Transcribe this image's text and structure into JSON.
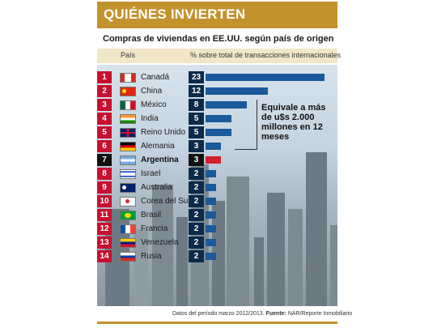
{
  "header": {
    "title": "QUIÉNES INVIERTEN"
  },
  "subtitle": "Compras de viviendas en EE.UU. según país de origen",
  "columns": {
    "country": "País",
    "value": "% sobre total de transacciones internacionales"
  },
  "callout": "Equivale a más de u$s 2.000 millones en 12 meses",
  "footer": {
    "prefix": "Datos del período marzo 2012/2013.",
    "source_label": "Fuente:",
    "source": "NAR/Reporte Inmobiliario"
  },
  "colors": {
    "rank_red": "#c8102e",
    "rank_black": "#111111",
    "value_navy": "#0d2a4a",
    "bar_blue": "#1a5a9a",
    "highlight_red": "#d4202c",
    "header_gold": "#c2922c"
  },
  "chart_data": {
    "type": "bar",
    "orientation": "horizontal",
    "title": "Compras de viviendas en EE.UU. según país de origen",
    "xlabel": "% sobre total de transacciones internacionales",
    "ylabel": "País",
    "xlim": [
      0,
      23
    ],
    "highlight": "Argentina",
    "rows": [
      {
        "rank": "1",
        "country": "Canadá",
        "value": 23,
        "flag": "canada"
      },
      {
        "rank": "2",
        "country": "China",
        "value": 12,
        "flag": "china"
      },
      {
        "rank": "3",
        "country": "México",
        "value": 8,
        "flag": "mexico"
      },
      {
        "rank": "4",
        "country": "India",
        "value": 5,
        "flag": "india"
      },
      {
        "rank": "5",
        "country": "Reino Unido",
        "value": 5,
        "flag": "uk"
      },
      {
        "rank": "6",
        "country": "Alemania",
        "value": 3,
        "flag": "germany"
      },
      {
        "rank": "7",
        "country": "Argentina",
        "value": 3,
        "flag": "argentina"
      },
      {
        "rank": "8",
        "country": "Israel",
        "value": 2,
        "flag": "israel"
      },
      {
        "rank": "9",
        "country": "Australia",
        "value": 2,
        "flag": "australia"
      },
      {
        "rank": "10",
        "country": "Corea del Sur",
        "value": 2,
        "flag": "korea"
      },
      {
        "rank": "11",
        "country": "Brasil",
        "value": 2,
        "flag": "brazil"
      },
      {
        "rank": "12",
        "country": "Francia",
        "value": 2,
        "flag": "france"
      },
      {
        "rank": "13",
        "country": "Venezuela",
        "value": 2,
        "flag": "venezuela"
      },
      {
        "rank": "14",
        "country": "Rusia",
        "value": 2,
        "flag": "russia"
      }
    ]
  }
}
